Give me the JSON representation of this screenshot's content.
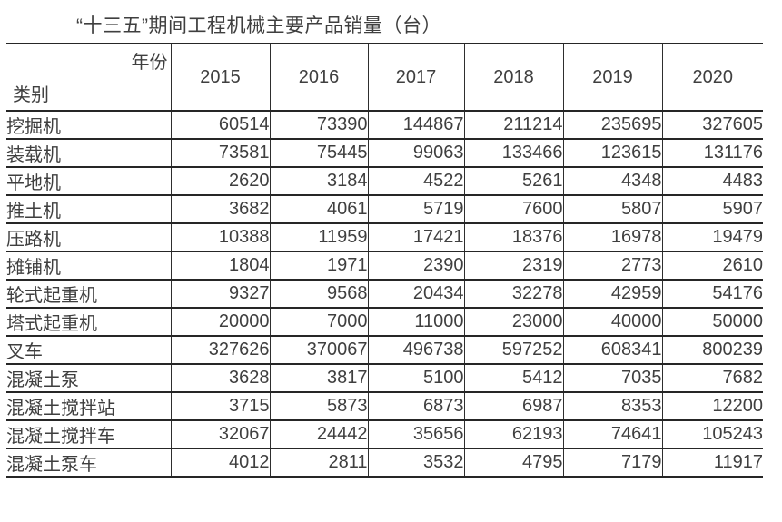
{
  "title": "“十三五”期间工程机械主要产品销量（台）",
  "chart_data": {
    "type": "table",
    "title": "“十三五”期间工程机械主要产品销量（台）",
    "unit": "台",
    "corner_top_right": "年份",
    "corner_bottom_left": "类别",
    "columns": [
      "2015",
      "2016",
      "2017",
      "2018",
      "2019",
      "2020"
    ],
    "rows": [
      {
        "category": "挖掘机",
        "values": [
          "60514",
          "73390",
          "144867",
          "211214",
          "235695",
          "327605"
        ]
      },
      {
        "category": "装载机",
        "values": [
          "73581",
          "75445",
          "99063",
          "133466",
          "123615",
          "131176"
        ]
      },
      {
        "category": "平地机",
        "values": [
          "2620",
          "3184",
          "4522",
          "5261",
          "4348",
          "4483"
        ]
      },
      {
        "category": "推土机",
        "values": [
          "3682",
          "4061",
          "5719",
          "7600",
          "5807",
          "5907"
        ]
      },
      {
        "category": "压路机",
        "values": [
          "10388",
          "11959",
          "17421",
          "18376",
          "16978",
          "19479"
        ]
      },
      {
        "category": "摊铺机",
        "values": [
          "1804",
          "1971",
          "2390",
          "2319",
          "2773",
          "2610"
        ]
      },
      {
        "category": "轮式起重机",
        "values": [
          "9327",
          "9568",
          "20434",
          "32278",
          "42959",
          "54176"
        ]
      },
      {
        "category": "塔式起重机",
        "values": [
          "20000",
          "7000",
          "11000",
          "23000",
          "40000",
          "50000"
        ]
      },
      {
        "category": "叉车",
        "values": [
          "327626",
          "370067",
          "496738",
          "597252",
          "608341",
          "800239"
        ]
      },
      {
        "category": "混凝土泵",
        "values": [
          "3628",
          "3817",
          "5100",
          "5412",
          "7035",
          "7682"
        ]
      },
      {
        "category": "混凝土搅拌站",
        "values": [
          "3715",
          "5873",
          "6873",
          "6987",
          "8353",
          "12200"
        ]
      },
      {
        "category": "混凝土搅拌车",
        "values": [
          "32067",
          "24442",
          "35656",
          "62193",
          "74641",
          "105243"
        ]
      },
      {
        "category": "混凝土泵车",
        "values": [
          "4012",
          "2811",
          "3532",
          "4795",
          "7179",
          "11917"
        ]
      }
    ]
  }
}
